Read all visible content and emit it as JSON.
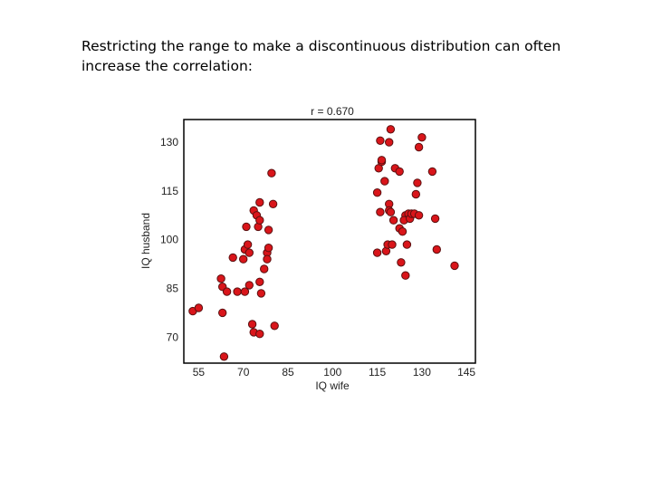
{
  "slide": {
    "text_line_1": "Restricting the range to make a discontinuous distribution can often",
    "text_line_2": "increase the correlation:"
  },
  "chart_data": {
    "type": "scatter",
    "title": "r = 0.670",
    "xlabel": "IQ wife",
    "ylabel": "IQ husband",
    "xlim": [
      50,
      148
    ],
    "ylim": [
      62,
      137
    ],
    "xticks": [
      55,
      70,
      85,
      100,
      115,
      130,
      145
    ],
    "yticks": [
      70,
      85,
      100,
      115,
      130
    ],
    "grid": false,
    "marker_color": "#d9151a",
    "marker_edge": "#5a1010",
    "points": [
      [
        53,
        78
      ],
      [
        55,
        79
      ],
      [
        63,
        77.5
      ],
      [
        63.5,
        64
      ],
      [
        62.5,
        88
      ],
      [
        63,
        85.5
      ],
      [
        64.5,
        84
      ],
      [
        66.5,
        94.5
      ],
      [
        68,
        84
      ],
      [
        70,
        94
      ],
      [
        70.5,
        84
      ],
      [
        72,
        86
      ],
      [
        73,
        74
      ],
      [
        73.5,
        71.5
      ],
      [
        70.5,
        97
      ],
      [
        71,
        104
      ],
      [
        71.5,
        98.5
      ],
      [
        72,
        96
      ],
      [
        73.5,
        109
      ],
      [
        74.5,
        107.5
      ],
      [
        75,
        104
      ],
      [
        75.5,
        106
      ],
      [
        75.5,
        111.5
      ],
      [
        76,
        83.5
      ],
      [
        77,
        91
      ],
      [
        75.5,
        87
      ],
      [
        78,
        96
      ],
      [
        78.5,
        97.5
      ],
      [
        78.5,
        103
      ],
      [
        78,
        94
      ],
      [
        79.5,
        120.5
      ],
      [
        80,
        111
      ],
      [
        80.5,
        73.5
      ],
      [
        75.5,
        71
      ],
      [
        115,
        96
      ],
      [
        116,
        130.5
      ],
      [
        119,
        130
      ],
      [
        119.5,
        134
      ],
      [
        115,
        114.5
      ],
      [
        115.5,
        122
      ],
      [
        116,
        108.5
      ],
      [
        116.5,
        124
      ],
      [
        116.5,
        124.5
      ],
      [
        117.5,
        118
      ],
      [
        118,
        96.5
      ],
      [
        118.5,
        98.5
      ],
      [
        119,
        111
      ],
      [
        119,
        109
      ],
      [
        119.5,
        108.5
      ],
      [
        120.5,
        106
      ],
      [
        120,
        98.5
      ],
      [
        121,
        122
      ],
      [
        122.5,
        121
      ],
      [
        122.5,
        103.5
      ],
      [
        123,
        93
      ],
      [
        123.5,
        102.5
      ],
      [
        124.5,
        107.5
      ],
      [
        124,
        106
      ],
      [
        124.5,
        89
      ],
      [
        125,
        98.5
      ],
      [
        125.5,
        108
      ],
      [
        126,
        106.5
      ],
      [
        126.5,
        108
      ],
      [
        127.5,
        108
      ],
      [
        128,
        114
      ],
      [
        128.5,
        117.5
      ],
      [
        129,
        107.5
      ],
      [
        129,
        128.5
      ],
      [
        130,
        131.5
      ],
      [
        133.5,
        121
      ],
      [
        134.5,
        106.5
      ],
      [
        135,
        97
      ],
      [
        141,
        92
      ]
    ]
  }
}
